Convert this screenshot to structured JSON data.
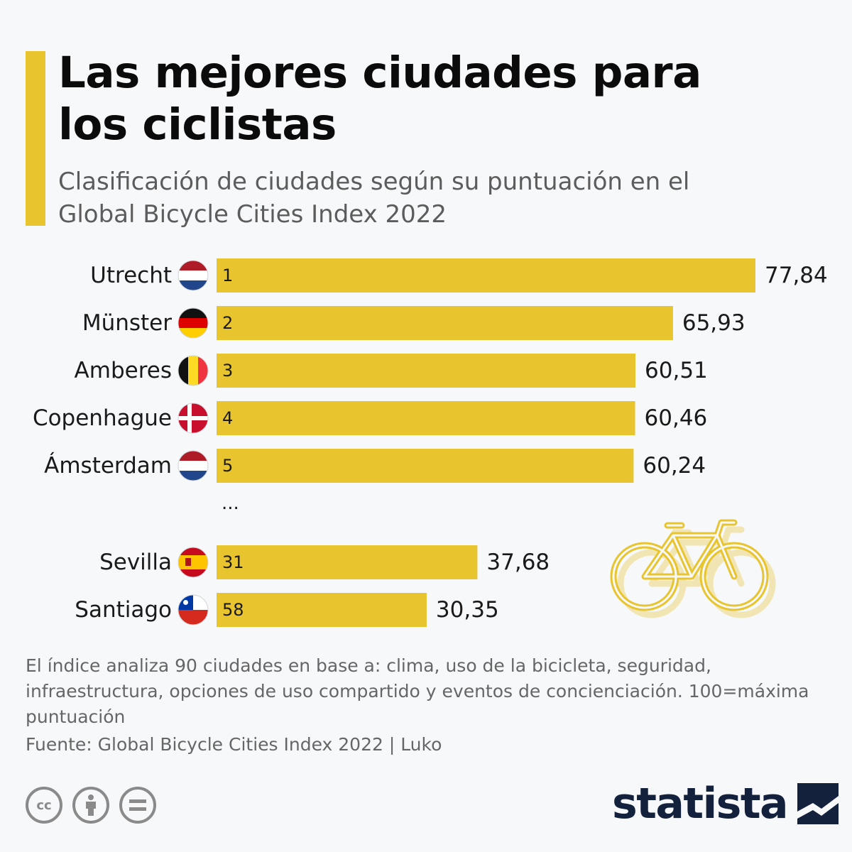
{
  "header": {
    "title": "Las mejores ciudades para los ciclistas",
    "subtitle": "Clasificación de ciudades según su puntuación en el Global Bicycle Cities Index 2022"
  },
  "chart_data": {
    "type": "bar",
    "orientation": "horizontal",
    "title": "Las mejores ciudades para los ciclistas",
    "subtitle": "Clasificación de ciudades según su puntuación en el Global Bicycle Cities Index 2022",
    "categories": [
      "Utrecht",
      "Münster",
      "Amberes",
      "Copenhague",
      "Ámsterdam",
      "Sevilla",
      "Santiago"
    ],
    "ranks": [
      "1",
      "2",
      "3",
      "4",
      "5",
      "31",
      "58"
    ],
    "values": [
      77.84,
      65.93,
      60.51,
      60.46,
      60.24,
      37.68,
      30.35
    ],
    "value_labels": [
      "77,84",
      "65,93",
      "60,51",
      "60,46",
      "60,24",
      "37,68",
      "30,35"
    ],
    "flags": [
      "flag-netherlands",
      "flag-germany",
      "flag-belgium",
      "flag-denmark",
      "flag-netherlands",
      "flag-spain",
      "flag-chile"
    ],
    "gap_label": "...",
    "gap_after_index": 4,
    "xlim": [
      0,
      77.84
    ],
    "grid": false,
    "bar_color": "#e8c42e"
  },
  "footer": {
    "note": "El índice analiza 90 ciudades en base a: clima, uso de la bicicleta, seguridad, infraestructura, opciones de uso compartido y eventos de concienciación. 100=máxima puntuación",
    "source": "Fuente: Global Bicycle Cities Index 2022 | Luko",
    "brand": "statista"
  },
  "colors": {
    "accent": "#e8c42e",
    "brand": "#14213d",
    "text": "#1a1a1a",
    "muted": "#666666",
    "background": "#f6f8fa"
  },
  "icons": [
    "bicycle-icon",
    "cc-icon",
    "attribution-icon",
    "no-derivatives-icon",
    "statista-logo-icon"
  ]
}
